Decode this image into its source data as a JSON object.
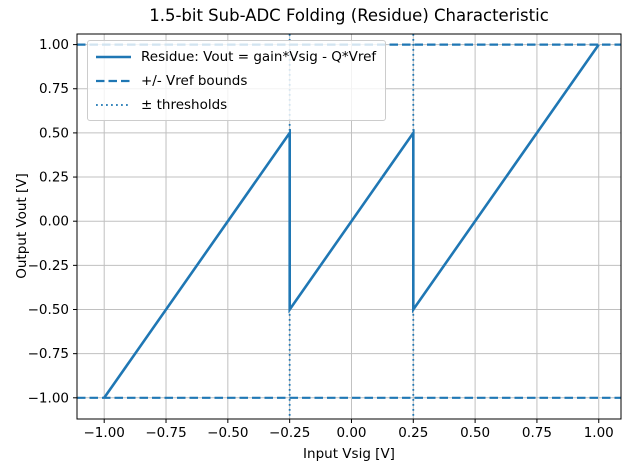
{
  "chart_data": {
    "type": "line",
    "title": "1.5-bit Sub-ADC Folding (Residue) Characteristic",
    "xlabel": "Input Vsig [V]",
    "ylabel": "Output Vout [V]",
    "xlim": [
      -1.11,
      1.09
    ],
    "ylim": [
      -1.12,
      1.06
    ],
    "grid": true,
    "legend_position": "upper left",
    "xticks": {
      "values": [
        -1.0,
        -0.75,
        -0.5,
        -0.25,
        0.0,
        0.25,
        0.5,
        0.75,
        1.0
      ],
      "labels": [
        "−1.00",
        "−0.75",
        "−0.50",
        "−0.25",
        "0.00",
        "0.25",
        "0.50",
        "0.75",
        "1.00"
      ]
    },
    "yticks": {
      "values": [
        -1.0,
        -0.75,
        -0.5,
        -0.25,
        0.0,
        0.25,
        0.5,
        0.75,
        1.0
      ],
      "labels": [
        "−1.00",
        "−0.75",
        "−0.50",
        "−0.25",
        "0.00",
        "0.25",
        "0.50",
        "0.75",
        "1.00"
      ]
    },
    "series": [
      {
        "name": "Residue: Vout = gain*Vsig - Q*Vref",
        "style": "solid",
        "color": "#1f77b4",
        "line_width": 2.6,
        "points": [
          [
            -1.0,
            -1.0
          ],
          [
            -0.25,
            0.5
          ],
          [
            -0.25,
            -0.5
          ],
          [
            0.25,
            0.5
          ],
          [
            0.25,
            -0.5
          ],
          [
            1.0,
            1.0
          ]
        ]
      },
      {
        "name": "+/- Vref bounds",
        "style": "dashed",
        "color": "#1f77b4",
        "line_width": 2.2,
        "hlines": [
          1.0,
          -1.0
        ]
      },
      {
        "name": "± thresholds",
        "style": "dotted",
        "color": "#1f77b4",
        "line_width": 1.8,
        "vlines": [
          0.25,
          -0.25
        ]
      }
    ],
    "colors": {
      "line": "#1f77b4",
      "grid": "#c0c0c0",
      "spine": "#000000",
      "text": "#000000",
      "legend_border": "#cccccc"
    }
  }
}
